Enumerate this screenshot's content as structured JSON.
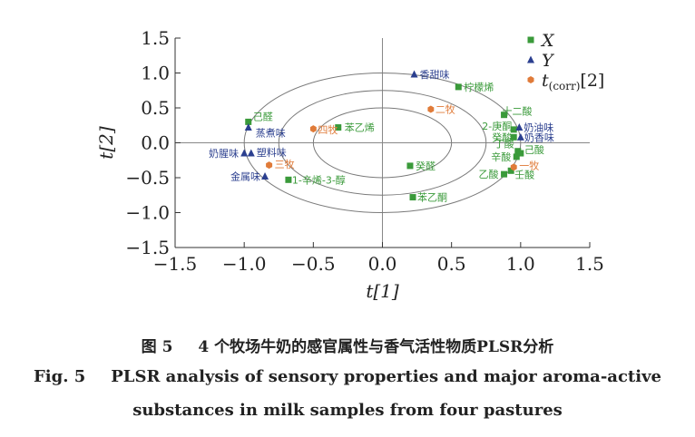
{
  "chart_data": {
    "type": "scatter",
    "xlabel": "t[1]",
    "ylabel": "t[2]",
    "xlim": [
      -1.5,
      1.5
    ],
    "ylim": [
      -1.5,
      1.5
    ],
    "x_ticks": [
      "−1.5",
      "−1.0",
      "−0.5",
      "0.0",
      "0.5",
      "1.0",
      "1.5"
    ],
    "y_ticks": [
      "1.5",
      "1.0",
      "0.5",
      "0.0",
      "−0.5",
      "−1.0",
      "−1.5"
    ],
    "ellipse_radii": [
      0.5,
      0.75,
      1.0
    ],
    "legend": [
      {
        "key": "X",
        "label": "X",
        "color": "#3a9a3a",
        "marker": "square"
      },
      {
        "key": "Y",
        "label": "Y",
        "color": "#2b3f8f",
        "marker": "triangle"
      },
      {
        "key": "T",
        "label": "t",
        "sub": "(corr)",
        "suffix": "[2]",
        "color": "#e07b39",
        "marker": "hexagon"
      }
    ],
    "legend_position": "top-right",
    "series": [
      {
        "name": "X",
        "points": [
          {
            "label": "柠檬烯",
            "x": 0.55,
            "y": 0.8
          },
          {
            "label": "十二酸",
            "x": 0.88,
            "y": 0.4
          },
          {
            "label": "己醛",
            "x": -0.97,
            "y": 0.3
          },
          {
            "label": "2-庚酮",
            "x": 0.95,
            "y": 0.19
          },
          {
            "label": "苯乙烯",
            "x": -0.32,
            "y": 0.22
          },
          {
            "label": "癸酸",
            "x": 0.95,
            "y": 0.08
          },
          {
            "label": "丁酸",
            "x": 0.98,
            "y": -0.12
          },
          {
            "label": "己酸",
            "x": 1.0,
            "y": -0.15
          },
          {
            "label": "辛酸",
            "x": 0.97,
            "y": -0.2
          },
          {
            "label": "癸醛",
            "x": 0.2,
            "y": -0.33
          },
          {
            "label": "乙酸",
            "x": 0.88,
            "y": -0.45
          },
          {
            "label": "壬酸",
            "x": 0.93,
            "y": -0.4
          },
          {
            "label": "1-辛烯-3-醇",
            "x": -0.68,
            "y": -0.53
          },
          {
            "label": "苯乙酮",
            "x": 0.22,
            "y": -0.78
          }
        ]
      },
      {
        "name": "Y",
        "points": [
          {
            "label": "香甜味",
            "x": 0.23,
            "y": 0.98
          },
          {
            "label": "蒸煮味",
            "x": -0.97,
            "y": 0.22
          },
          {
            "label": "奶油味",
            "x": 0.99,
            "y": 0.22
          },
          {
            "label": "奶香味",
            "x": 1.0,
            "y": 0.08
          },
          {
            "label": "奶腥味",
            "x": -1.0,
            "y": -0.15
          },
          {
            "label": "塑料味",
            "x": -0.95,
            "y": -0.15
          },
          {
            "label": "金属味",
            "x": -0.85,
            "y": -0.48
          }
        ]
      },
      {
        "name": "T",
        "points": [
          {
            "label": "二牧",
            "x": 0.35,
            "y": 0.48
          },
          {
            "label": "四牧",
            "x": -0.5,
            "y": 0.2
          },
          {
            "label": "一牧",
            "x": 0.95,
            "y": -0.35
          },
          {
            "label": "三牧",
            "x": -0.82,
            "y": -0.32
          }
        ]
      }
    ]
  },
  "caption": {
    "zh_number": "图 5",
    "zh_text": "4 个牧场牛奶的感官属性与香气活性物质PLSR分析",
    "en_number": "Fig. 5",
    "en_line1": "PLSR analysis of sensory properties and major aroma-active",
    "en_line2": "substances in milk samples from four pastures"
  }
}
